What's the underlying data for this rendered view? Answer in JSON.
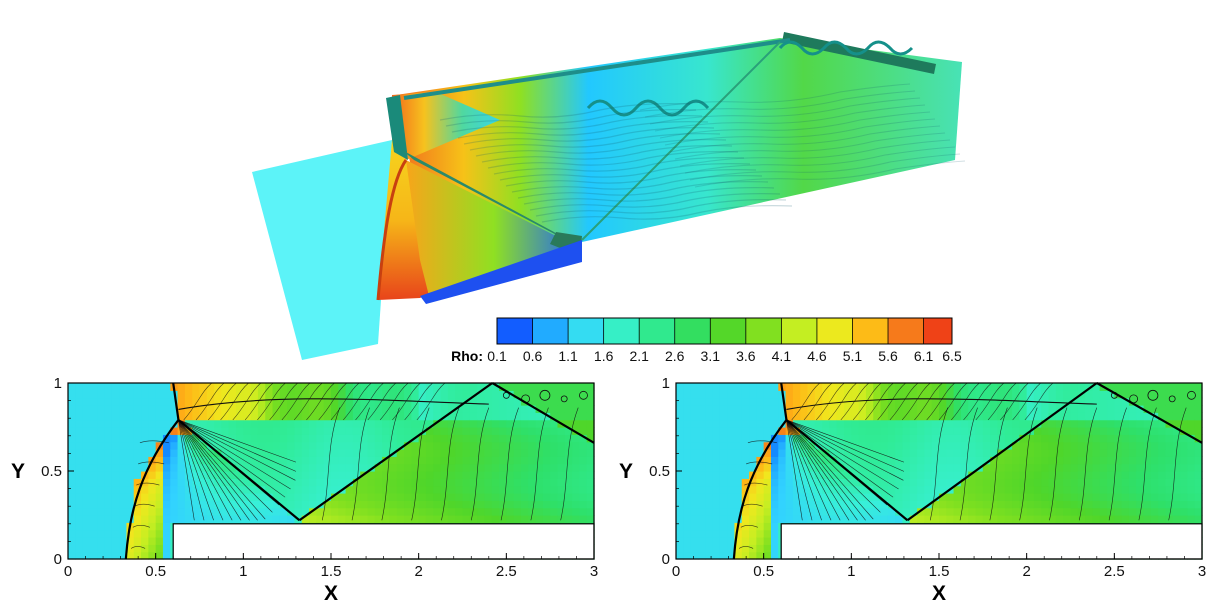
{
  "chart_data": [
    {
      "type": "surface-3d",
      "colormap": [
        "#1030ff",
        "#1590ff",
        "#32d2ff",
        "#38f0d8",
        "#30ec98",
        "#2ee06a",
        "#4fd62a",
        "#7fe020",
        "#c6ee22",
        "#f0e81e",
        "#ffb316",
        "#f36a1c",
        "#ec2a14"
      ],
      "colorbar": {
        "title": "Rho:",
        "ticks": [
          "0.1",
          "0.6",
          "1.1",
          "1.6",
          "2.1",
          "2.6",
          "3.1",
          "3.6",
          "4.1",
          "4.6",
          "5.1",
          "5.6",
          "6.1",
          "6.5"
        ],
        "range": [
          0.1,
          6.5
        ]
      }
    },
    {
      "type": "contour",
      "xlabel": "X",
      "ylabel": "Y",
      "xlim": [
        0,
        3
      ],
      "ylim": [
        0,
        1
      ],
      "xticks": [
        "0",
        "0.5",
        "1",
        "1.5",
        "2",
        "2.5",
        "3"
      ],
      "yticks": [
        "0",
        "0.5",
        "1"
      ],
      "step_x": 0.6,
      "step_y": 0.2,
      "shocks": {
        "bow": [
          [
            0.33,
            0.0
          ],
          [
            0.38,
            0.42
          ],
          [
            0.5,
            0.62
          ],
          [
            0.63,
            0.79
          ]
        ],
        "mach_stem": [
          [
            0.63,
            0.79
          ],
          [
            0.6,
            1.0
          ]
        ],
        "reflected": [
          [
            0.63,
            0.79
          ],
          [
            1.32,
            0.22
          ]
        ],
        "second": [
          [
            1.32,
            0.22
          ],
          [
            2.42,
            1.0
          ]
        ],
        "third": [
          [
            2.42,
            1.0
          ],
          [
            3.0,
            0.66
          ]
        ]
      }
    },
    {
      "type": "contour",
      "xlabel": "X",
      "ylabel": "Y",
      "xlim": [
        0,
        3
      ],
      "ylim": [
        0,
        1
      ],
      "xticks": [
        "0",
        "0.5",
        "1",
        "1.5",
        "2",
        "2.5",
        "3"
      ],
      "yticks": [
        "0",
        "0.5",
        "1"
      ],
      "step_x": 0.6,
      "step_y": 0.2,
      "shocks": {
        "bow": [
          [
            0.33,
            0.0
          ],
          [
            0.38,
            0.42
          ],
          [
            0.5,
            0.62
          ],
          [
            0.63,
            0.79
          ]
        ],
        "mach_stem": [
          [
            0.63,
            0.79
          ],
          [
            0.6,
            1.0
          ]
        ],
        "reflected": [
          [
            0.63,
            0.79
          ],
          [
            1.32,
            0.22
          ]
        ],
        "second": [
          [
            1.32,
            0.22
          ],
          [
            2.4,
            1.0
          ]
        ],
        "third": [
          [
            2.4,
            1.0
          ],
          [
            3.0,
            0.66
          ]
        ]
      }
    }
  ]
}
